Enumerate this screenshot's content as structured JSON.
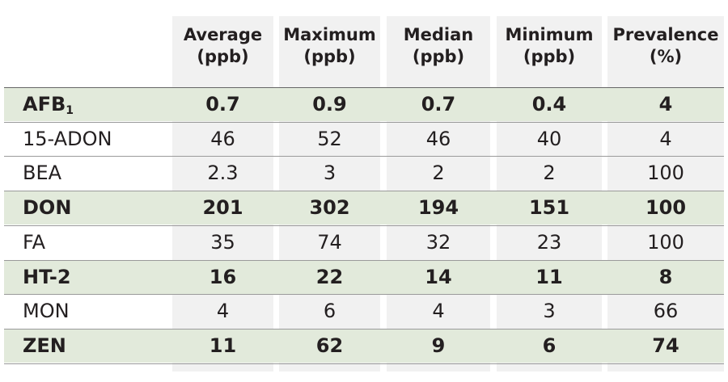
{
  "table": {
    "columns": [
      {
        "name": "Average",
        "unit": "(ppb)"
      },
      {
        "name": "Maximum",
        "unit": "(ppb)"
      },
      {
        "name": "Median",
        "unit": "(ppb)"
      },
      {
        "name": "Minimum",
        "unit": "(ppb)"
      },
      {
        "name": "Prevalence",
        "unit": "(%)"
      }
    ],
    "rows": [
      {
        "label": "AFB",
        "label_sub": "1",
        "bold": true,
        "values": [
          0.7,
          0.9,
          0.7,
          0.4,
          4
        ]
      },
      {
        "label": "15-ADON",
        "bold": false,
        "values": [
          46,
          52,
          46,
          40,
          4
        ]
      },
      {
        "label": "BEA",
        "bold": false,
        "values": [
          2.3,
          3,
          2,
          2,
          100
        ]
      },
      {
        "label": "DON",
        "bold": true,
        "values": [
          201,
          302,
          194,
          151,
          100
        ]
      },
      {
        "label": "FA",
        "bold": false,
        "values": [
          35,
          74,
          32,
          23,
          100
        ]
      },
      {
        "label": "HT-2",
        "bold": true,
        "values": [
          16,
          22,
          14,
          11,
          8
        ]
      },
      {
        "label": "MON",
        "bold": false,
        "values": [
          4,
          6,
          4,
          3,
          66
        ]
      },
      {
        "label": "ZEN",
        "bold": true,
        "values": [
          11,
          62,
          9,
          6,
          74
        ]
      }
    ]
  }
}
